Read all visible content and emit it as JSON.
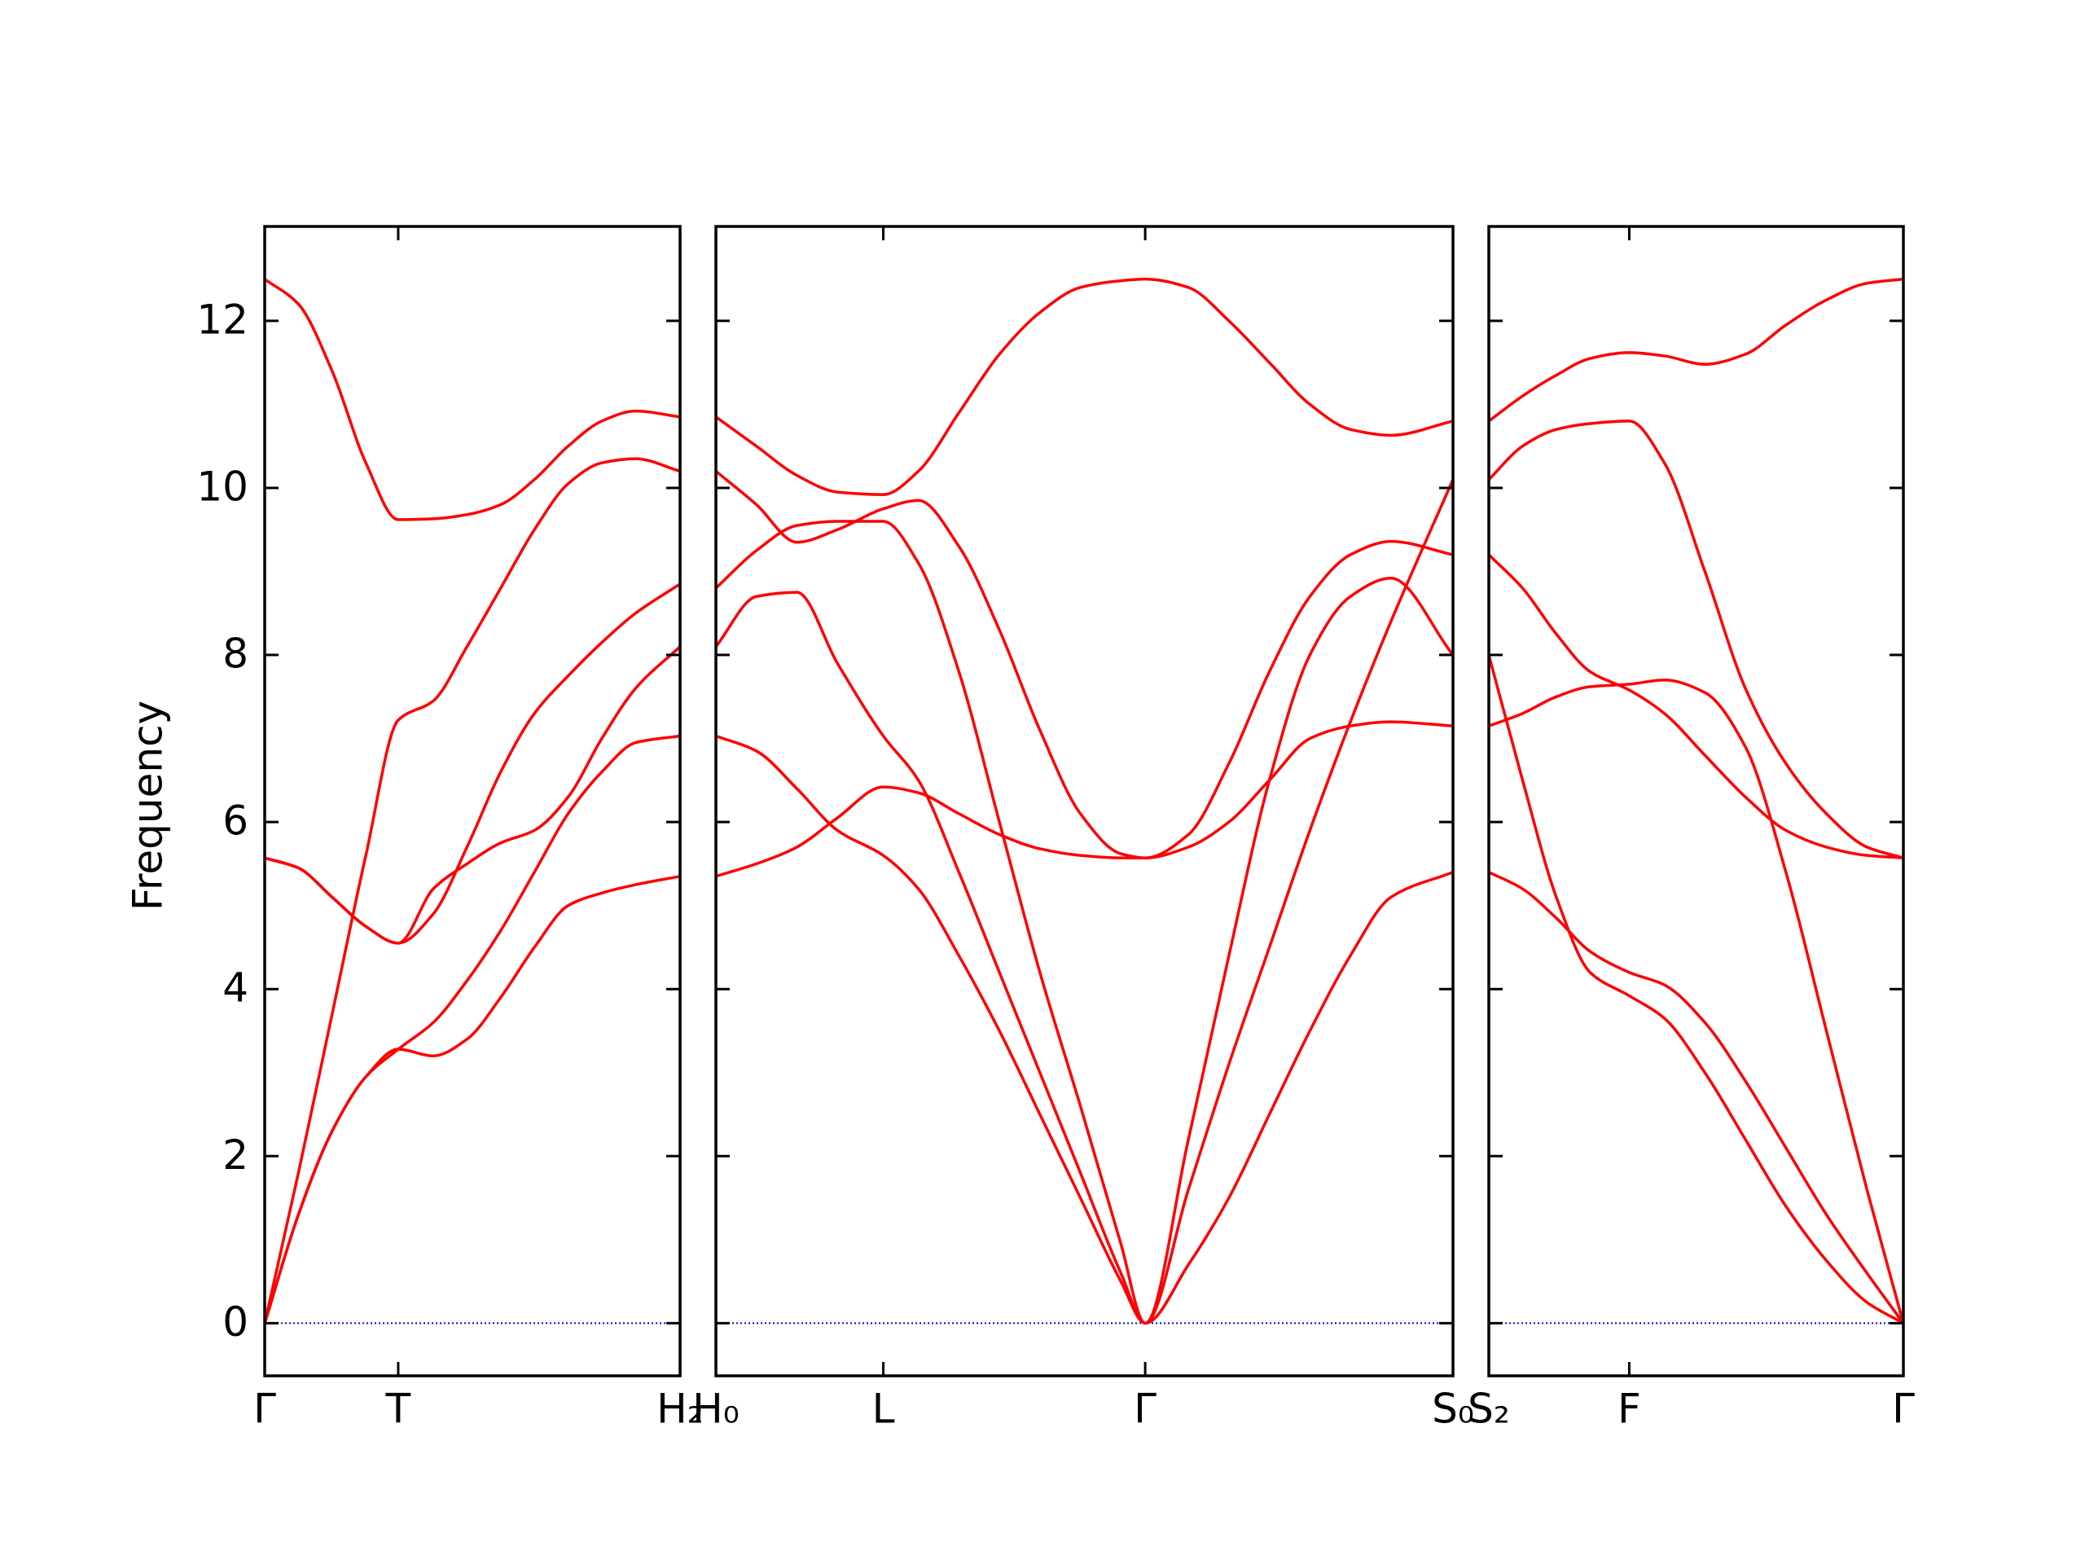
{
  "chart_data": {
    "type": "line",
    "ylabel": "Frequency",
    "line_color": "#ff0000",
    "hline": 0,
    "hline_color": "#0000ff",
    "ylim": [
      -0.63,
      13.13
    ],
    "yticks": [
      0,
      2,
      4,
      6,
      8,
      10,
      12
    ],
    "panels": [
      {
        "xlim": [
          0,
          3.08
        ],
        "xticks": [
          {
            "value": 0,
            "label": "Γ"
          },
          {
            "value": 0.99,
            "label": "T"
          },
          {
            "value": 3.08,
            "label": "H₂"
          }
        ],
        "x": [
          0,
          0.25,
          0.5,
          0.75,
          0.99,
          1.25,
          1.5,
          1.75,
          2.0,
          2.25,
          2.5,
          2.75,
          3.08
        ],
        "series": [
          {
            "values": [
              12.5,
              12.2,
              11.4,
              10.3,
              9.62,
              9.63,
              9.68,
              9.8,
              10.1,
              10.5,
              10.8,
              10.92,
              10.85
            ]
          },
          {
            "values": [
              0,
              1.8,
              3.7,
              5.6,
              7.22,
              7.45,
              8.1,
              8.8,
              9.5,
              10.05,
              10.3,
              10.35,
              10.2
            ]
          },
          {
            "values": [
              5.57,
              5.45,
              5.1,
              4.75,
              4.55,
              4.9,
              5.7,
              6.6,
              7.3,
              7.75,
              8.15,
              8.5,
              8.85
            ]
          },
          {
            "values": [
              5.57,
              5.45,
              5.1,
              4.75,
              4.55,
              5.2,
              5.5,
              5.75,
              5.9,
              6.3,
              7.0,
              7.6,
              8.1
            ]
          },
          {
            "values": [
              0,
              1.3,
              2.3,
              2.95,
              3.28,
              3.6,
              4.1,
              4.7,
              5.4,
              6.1,
              6.6,
              6.95,
              7.03
            ]
          },
          {
            "values": [
              0,
              1.3,
              2.3,
              2.95,
              3.28,
              3.2,
              3.4,
              3.9,
              4.5,
              5.0,
              5.15,
              5.25,
              5.35
            ]
          }
        ]
      },
      {
        "xlim": [
          0,
          5.46
        ],
        "xticks": [
          {
            "value": 0,
            "label": "H₀"
          },
          {
            "value": 1.24,
            "label": "L"
          },
          {
            "value": 3.18,
            "label": "Γ"
          },
          {
            "value": 5.46,
            "label": "S₀"
          }
        ],
        "x": [
          0,
          0.3,
          0.6,
          0.9,
          1.24,
          1.5,
          1.8,
          2.1,
          2.4,
          2.7,
          3.0,
          3.18,
          3.5,
          3.8,
          4.1,
          4.4,
          4.7,
          5.0,
          5.46
        ],
        "series": [
          {
            "values": [
              10.85,
              10.5,
              10.15,
              9.95,
              9.92,
              10.2,
              10.9,
              11.6,
              12.1,
              12.4,
              12.48,
              12.5,
              12.4,
              12.0,
              11.5,
              11.0,
              10.7,
              10.63,
              10.8
            ]
          },
          {
            "values": [
              10.2,
              9.8,
              9.35,
              9.5,
              9.75,
              9.85,
              9.3,
              8.3,
              7.1,
              6.1,
              5.62,
              5.57,
              5.85,
              6.7,
              7.8,
              8.7,
              9.2,
              9.36,
              9.2
            ]
          },
          {
            "values": [
              8.8,
              9.25,
              9.55,
              9.6,
              9.6,
              9.1,
              7.8,
              6.0,
              4.2,
              2.6,
              0.95,
              0,
              1.6,
              3.1,
              4.5,
              5.9,
              7.2,
              8.4,
              10.1
            ]
          },
          {
            "values": [
              8.1,
              8.7,
              8.75,
              7.9,
              7.03,
              6.5,
              5.4,
              4.2,
              3.0,
              1.8,
              0.6,
              0,
              2.2,
              4.4,
              6.5,
              8.0,
              8.7,
              8.92,
              8.0
            ]
          },
          {
            "values": [
              7.03,
              6.85,
              6.4,
              5.9,
              5.6,
              5.2,
              4.4,
              3.5,
              2.5,
              1.5,
              0.5,
              0,
              0.7,
              1.5,
              2.5,
              3.5,
              4.4,
              5.1,
              5.4
            ]
          },
          {
            "values": [
              5.35,
              5.5,
              5.7,
              6.05,
              6.42,
              6.35,
              6.1,
              5.85,
              5.68,
              5.6,
              5.57,
              5.57,
              5.7,
              6.0,
              6.5,
              7.0,
              7.15,
              7.2,
              7.15
            ]
          }
        ]
      },
      {
        "xlim": [
          0,
          3.07
        ],
        "xticks": [
          {
            "value": 0,
            "label": "S₂"
          },
          {
            "value": 1.04,
            "label": "F"
          },
          {
            "value": 3.07,
            "label": "Γ"
          }
        ],
        "x": [
          0,
          0.25,
          0.5,
          0.75,
          1.04,
          1.3,
          1.6,
          1.9,
          2.2,
          2.5,
          2.8,
          3.07
        ],
        "series": [
          {
            "values": [
              10.8,
              11.1,
              11.35,
              11.55,
              11.62,
              11.58,
              11.48,
              11.6,
              11.95,
              12.25,
              12.45,
              12.5
            ]
          },
          {
            "values": [
              10.1,
              10.5,
              10.7,
              10.77,
              10.8,
              10.3,
              9.0,
              7.6,
              6.7,
              6.1,
              5.7,
              5.57
            ]
          },
          {
            "values": [
              9.2,
              8.8,
              8.25,
              7.8,
              7.58,
              7.3,
              6.8,
              6.3,
              5.9,
              5.7,
              5.6,
              5.57
            ]
          },
          {
            "values": [
              7.15,
              7.3,
              7.5,
              7.62,
              7.65,
              7.7,
              7.55,
              6.9,
              5.4,
              3.5,
              1.6,
              0
            ]
          },
          {
            "values": [
              8.0,
              6.5,
              5.1,
              4.2,
              3.92,
              3.65,
              3.0,
              2.2,
              1.4,
              0.75,
              0.25,
              0
            ]
          },
          {
            "values": [
              5.4,
              5.2,
              4.85,
              4.45,
              4.2,
              4.05,
              3.6,
              2.9,
              2.1,
              1.3,
              0.6,
              0
            ]
          }
        ]
      }
    ]
  }
}
